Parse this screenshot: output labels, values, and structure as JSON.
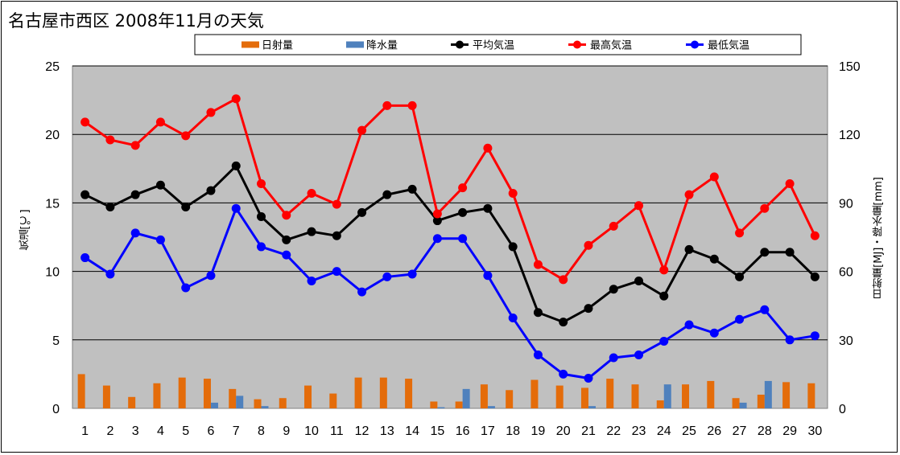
{
  "chart_data": {
    "type": "bar+line",
    "title": "名古屋市西区 2008年11月の天気",
    "ylabel": "気温[℃]",
    "y2label": "日射量[MJ]・降水量[mm]",
    "ylim": [
      0,
      25
    ],
    "y2lim": [
      0,
      150
    ],
    "yticks": [
      "0",
      "5",
      "10",
      "15",
      "20",
      "25"
    ],
    "y2ticks": [
      "0",
      "30",
      "60",
      "90",
      "120",
      "150"
    ],
    "grid": true,
    "legend_position": "top",
    "categories": [
      "1",
      "2",
      "3",
      "4",
      "5",
      "6",
      "7",
      "8",
      "9",
      "10",
      "11",
      "12",
      "13",
      "14",
      "15",
      "16",
      "17",
      "18",
      "19",
      "20",
      "21",
      "22",
      "23",
      "24",
      "25",
      "26",
      "27",
      "28",
      "29",
      "30"
    ],
    "bar_series": [
      {
        "name": "日射量",
        "color": "#e46c0a",
        "axis": "right",
        "values": [
          15,
          10,
          5,
          11,
          13.5,
          13,
          8.5,
          4,
          4.5,
          10,
          6.5,
          13.5,
          13.5,
          13,
          3,
          3,
          10.5,
          8,
          12.5,
          10,
          9,
          13,
          10.5,
          3.5,
          10.5,
          12,
          4.5,
          6,
          11.5,
          11
        ]
      },
      {
        "name": "降水量",
        "color": "#4f81bd",
        "axis": "right",
        "values": [
          0,
          0,
          0,
          0,
          0,
          2.5,
          5.5,
          1,
          0,
          0,
          0,
          0,
          0,
          0,
          0.5,
          8.5,
          1,
          0,
          0,
          0,
          1,
          0,
          0,
          10.5,
          0,
          0,
          2.5,
          12,
          0,
          0
        ]
      }
    ],
    "line_series": [
      {
        "name": "平均気温",
        "color": "#000000",
        "axis": "left",
        "values": [
          15.6,
          14.7,
          15.6,
          16.3,
          14.7,
          15.9,
          17.7,
          14.0,
          12.3,
          12.9,
          12.6,
          14.3,
          15.6,
          16.0,
          13.7,
          14.3,
          14.6,
          11.8,
          7.0,
          6.3,
          7.3,
          8.7,
          9.3,
          8.2,
          11.6,
          10.9,
          9.6,
          11.4,
          11.4,
          9.6
        ]
      },
      {
        "name": "最高気温",
        "color": "#ff0000",
        "axis": "left",
        "values": [
          20.9,
          19.6,
          19.2,
          20.9,
          19.9,
          21.6,
          22.6,
          16.4,
          14.1,
          15.7,
          14.9,
          20.3,
          22.1,
          22.1,
          14.2,
          16.1,
          19.0,
          15.7,
          10.5,
          9.4,
          11.9,
          13.3,
          14.8,
          10.1,
          15.6,
          16.9,
          12.8,
          14.6,
          16.4,
          12.6
        ]
      },
      {
        "name": "最低気温",
        "color": "#0000ff",
        "axis": "left",
        "values": [
          11.0,
          9.8,
          12.8,
          12.3,
          8.8,
          9.7,
          14.6,
          11.8,
          11.2,
          9.3,
          10.0,
          8.5,
          9.6,
          9.8,
          12.4,
          12.4,
          9.7,
          6.6,
          3.9,
          2.5,
          2.2,
          3.7,
          3.9,
          4.9,
          6.1,
          5.5,
          6.5,
          7.2,
          5.0,
          5.3
        ]
      }
    ]
  }
}
